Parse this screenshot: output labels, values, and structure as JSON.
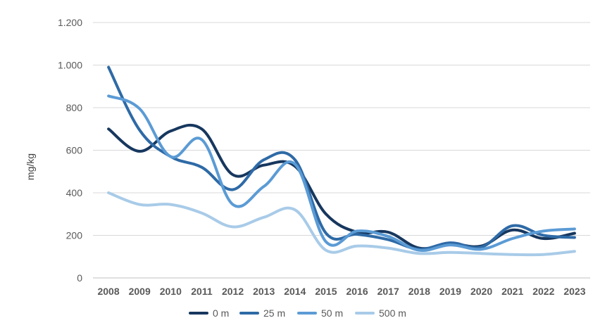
{
  "chart_data": {
    "type": "line",
    "title": "",
    "xlabel": "",
    "ylabel": "mg/kg",
    "ylim": [
      0,
      1200
    ],
    "yticks": [
      0,
      200,
      400,
      600,
      800,
      1000,
      1200
    ],
    "ytick_labels": [
      "0",
      "200",
      "400",
      "600",
      "800",
      "1.000",
      "1.200"
    ],
    "categories": [
      "2008",
      "2009",
      "2010",
      "2011",
      "2012",
      "2013",
      "2014",
      "2015",
      "2016",
      "2017",
      "2018",
      "2019",
      "2020",
      "2021",
      "2022",
      "2023"
    ],
    "grid": true,
    "smooth": true,
    "legend_position": "bottom",
    "series": [
      {
        "name": "0 m",
        "color": "#17375e",
        "values": [
          700,
          595,
          690,
          700,
          485,
          530,
          525,
          300,
          215,
          215,
          140,
          160,
          150,
          225,
          185,
          210
        ]
      },
      {
        "name": "25 m",
        "color": "#2e6aa6",
        "values": [
          990,
          695,
          570,
          520,
          415,
          555,
          555,
          210,
          205,
          180,
          135,
          165,
          145,
          245,
          200,
          190
        ]
      },
      {
        "name": "50 m",
        "color": "#5b9bd5",
        "values": [
          855,
          795,
          570,
          650,
          345,
          430,
          535,
          170,
          220,
          195,
          130,
          155,
          135,
          185,
          220,
          230
        ]
      },
      {
        "name": "500 m",
        "color": "#a8cbe8",
        "values": [
          400,
          345,
          345,
          305,
          240,
          285,
          320,
          130,
          150,
          140,
          115,
          120,
          115,
          110,
          110,
          125
        ]
      }
    ]
  }
}
